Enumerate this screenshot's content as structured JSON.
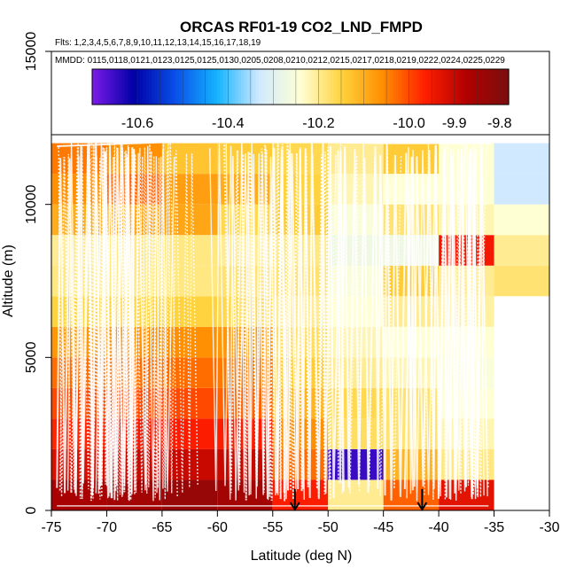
{
  "chart_data": {
    "type": "heatmap",
    "title": "ORCAS RF01-19 CO2_LND_FMPD",
    "flights_label": "Flts: 1,2,3,4,5,6,7,8,9,10,11,12,13,14,15,16,17,18,19",
    "mmdd_label": "MMDD: 0115,0118,0121,0123,0125,0125,0130,0205,0208,0210,0212,0215,0217,0218,0219,0222,0224,0225,0229",
    "xlabel": "Latitude (deg N)",
    "ylabel": "Altitude (m)",
    "xlim": [
      -75,
      -30
    ],
    "ylim": [
      0,
      15000
    ],
    "x_ticks": [
      "-75",
      "-70",
      "-65",
      "-60",
      "-55",
      "-50",
      "-45",
      "-40",
      "-35",
      "-30"
    ],
    "y_ticks": [
      "0",
      "5000",
      "10000",
      "15000"
    ],
    "colorbar": {
      "min": -10.7,
      "max": -9.78,
      "tick_values": [
        -10.6,
        -10.4,
        -10.2,
        -10.0,
        -9.9,
        -9.8
      ],
      "tick_labels": [
        "-10.6",
        "-10.4",
        "-10.2",
        "-10.0",
        "-9.9",
        "-9.8"
      ],
      "colors": [
        "#7d1be8",
        "#0000a6",
        "#0a50e8",
        "#14b4ff",
        "#cfe9ff",
        "#ffffd4",
        "#ffd23c",
        "#ff8c00",
        "#ff1e00",
        "#b00000",
        "#7a0f0f"
      ]
    },
    "cell_width_deg": 5,
    "cell_height_m": 1000,
    "columns": [
      {
        "lat": -75,
        "values": [
          -9.86,
          -9.92,
          -9.97,
          -10.0,
          -10.03,
          -10.07,
          -10.15,
          -10.19,
          -10.2,
          -10.1,
          -10.06,
          -10.04
        ]
      },
      {
        "lat": -70,
        "values": [
          -9.85,
          -9.9,
          -9.95,
          -10.0,
          -10.03,
          -10.06,
          -10.15,
          -10.19,
          -10.19,
          -10.09,
          -10.02,
          -10.06
        ]
      },
      {
        "lat": -65,
        "values": [
          -9.83,
          -9.9,
          -9.96,
          -10.0,
          -10.03,
          -10.06,
          -10.15,
          -10.19,
          -10.19,
          -10.09,
          -10.08,
          -10.13
        ]
      },
      {
        "lat": -60,
        "values": [
          -9.85,
          -9.9,
          -9.96,
          -10.02,
          -10.04,
          -10.07,
          -10.16,
          -10.18,
          -10.2,
          -10.16,
          -10.1,
          -10.14
        ]
      },
      {
        "lat": -55,
        "values": [
          -9.96,
          -10.03,
          -10.06,
          -10.11,
          -10.14,
          -10.17,
          -10.2,
          -10.18,
          -10.19,
          -10.14,
          -10.15,
          -10.16
        ]
      },
      {
        "lat": -50,
        "values": [
          -10.2,
          -10.65,
          -10.17,
          -10.16,
          -10.2,
          -10.22,
          -10.24,
          -10.25,
          -10.27,
          -10.25,
          -10.22,
          -10.2
        ]
      },
      {
        "lat": -45,
        "values": [
          -10.02,
          -10.11,
          -10.18,
          -10.18,
          -10.22,
          -10.24,
          -10.2,
          -10.14,
          -10.27,
          -10.18,
          -10.24,
          -10.14
        ]
      },
      {
        "lat": -40,
        "values": [
          -9.93,
          -10.19,
          -10.22,
          -10.24,
          -10.25,
          -10.24,
          -10.21,
          -10.2,
          -9.95,
          -10.22,
          -10.24,
          -10.24
        ]
      },
      {
        "lat": -35,
        "values": [
          null,
          null,
          null,
          null,
          null,
          null,
          null,
          -10.18,
          -10.2,
          -10.24,
          -10.33,
          -10.33
        ]
      }
    ],
    "annotations": [
      {
        "type": "arrow",
        "lat": -53
      },
      {
        "type": "arrow",
        "lat": -41.5
      }
    ]
  }
}
